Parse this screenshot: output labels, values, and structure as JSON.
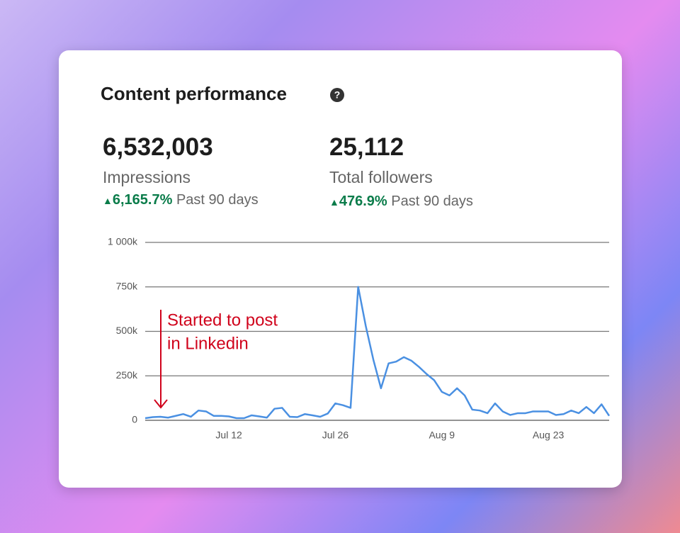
{
  "header": {
    "title": "Content performance"
  },
  "stats": [
    {
      "value": "6,532,003",
      "label": "Impressions",
      "change": "6,165.7%",
      "period": "Past 90 days"
    },
    {
      "value": "25,112",
      "label": "Total followers",
      "change": "476.9%",
      "period": "Past 90 days"
    }
  ],
  "chart_data": {
    "type": "line",
    "categories": [
      null,
      null,
      null,
      null,
      null,
      null,
      null,
      null,
      null,
      null,
      null,
      "Jul 12",
      null,
      null,
      null,
      null,
      null,
      null,
      null,
      null,
      null,
      null,
      null,
      null,
      null,
      "Jul 26",
      null,
      null,
      null,
      null,
      null,
      null,
      null,
      null,
      null,
      null,
      null,
      null,
      null,
      "Aug 9",
      null,
      null,
      null,
      null,
      null,
      null,
      null,
      null,
      null,
      null,
      null,
      null,
      null,
      "Aug 23",
      null,
      null,
      null,
      null,
      null,
      null,
      null,
      null
    ],
    "series": [
      {
        "name": "Impressions",
        "color": "#4a90e2",
        "values": [
          12000,
          18000,
          20000,
          15000,
          25000,
          35000,
          20000,
          55000,
          50000,
          25000,
          25000,
          22000,
          12000,
          12000,
          28000,
          22000,
          15000,
          65000,
          70000,
          20000,
          18000,
          35000,
          28000,
          20000,
          38000,
          95000,
          85000,
          70000,
          750000,
          530000,
          340000,
          180000,
          320000,
          330000,
          355000,
          335000,
          300000,
          260000,
          225000,
          160000,
          140000,
          180000,
          140000,
          60000,
          55000,
          40000,
          95000,
          50000,
          30000,
          40000,
          40000,
          50000,
          50000,
          50000,
          30000,
          35000,
          55000,
          40000,
          75000,
          40000,
          90000,
          25000
        ]
      }
    ],
    "ylim": [
      0,
      1000000
    ],
    "yticks": [
      0,
      {
        "value": 250000,
        "label": "250k"
      },
      {
        "value": 500000,
        "label": "500k"
      },
      {
        "value": 750000,
        "label": "750k"
      },
      {
        "value": 1000000,
        "label": "1 000k"
      }
    ],
    "grid": true,
    "annotation": {
      "lines": [
        "Started to post",
        "in Linkedin"
      ],
      "color": "#d0021b"
    }
  }
}
